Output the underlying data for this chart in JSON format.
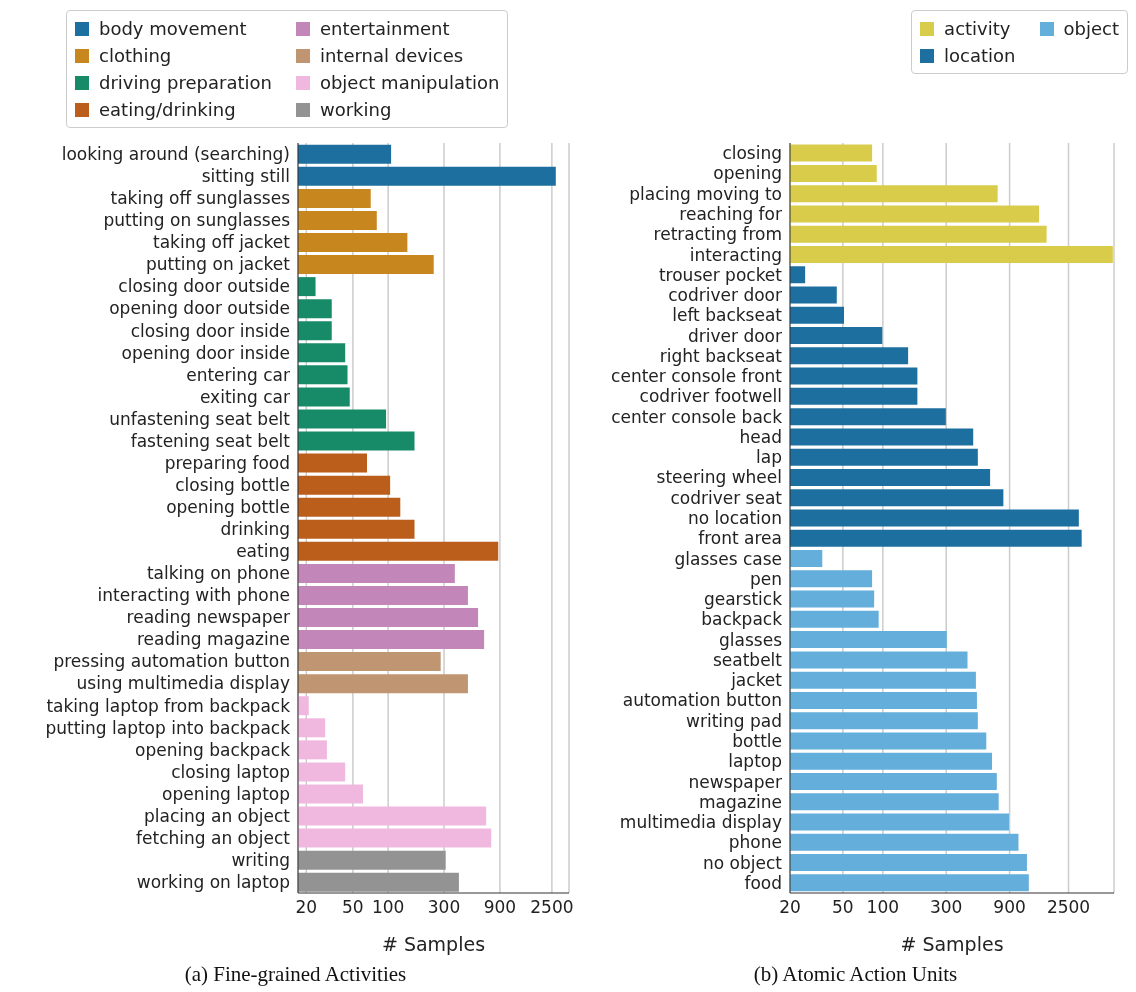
{
  "chart_data": [
    {
      "type": "bar",
      "orientation": "horizontal",
      "title": "(a) Fine-grained Activities",
      "xlabel": "# Samples",
      "log": "x",
      "grid": "x",
      "legend": "top",
      "xlim": [
        17,
        3500
      ],
      "xticks": [
        20,
        50,
        100,
        300,
        900,
        2500
      ],
      "categories": [
        "looking around (searching)",
        "sitting still",
        "taking off sunglasses",
        "putting on sunglasses",
        "taking off jacket",
        "putting on jacket",
        "closing door outside",
        "opening door outside",
        "closing door inside",
        "opening door inside",
        "entering car",
        "exiting car",
        "unfastening seat belt",
        "fastening seat belt",
        "preparing food",
        "closing bottle",
        "opening bottle",
        "drinking",
        "eating",
        "talking on phone",
        "interacting with phone",
        "reading newspaper",
        "reading magazine",
        "pressing automation button",
        "using multimedia display",
        "taking laptop from backpack",
        "putting laptop into backpack",
        "opening backpack",
        "closing laptop",
        "opening laptop",
        "placing an object",
        "fetching an object",
        "writing",
        "working on laptop"
      ],
      "series": [
        {
          "name": "body movement",
          "color": "#1c6f9f",
          "values": [
            106,
            2700,
            null,
            null,
            null,
            null,
            null,
            null,
            null,
            null,
            null,
            null,
            null,
            null,
            null,
            null,
            null,
            null,
            null,
            null,
            null,
            null,
            null,
            null,
            null,
            null,
            null,
            null,
            null,
            null,
            null,
            null,
            null,
            null
          ]
        },
        {
          "name": "clothing",
          "color": "#c8871e",
          "values": [
            null,
            null,
            71,
            80,
            146,
            245,
            null,
            null,
            null,
            null,
            null,
            null,
            null,
            null,
            null,
            null,
            null,
            null,
            null,
            null,
            null,
            null,
            null,
            null,
            null,
            null,
            null,
            null,
            null,
            null,
            null,
            null,
            null,
            null
          ]
        },
        {
          "name": "driving preparation",
          "color": "#178b68",
          "values": [
            null,
            null,
            null,
            null,
            null,
            null,
            24,
            33,
            33,
            43,
            45,
            47,
            96,
            168,
            null,
            null,
            null,
            null,
            null,
            null,
            null,
            null,
            null,
            null,
            null,
            null,
            null,
            null,
            null,
            null,
            null,
            null,
            null,
            null
          ]
        },
        {
          "name": "eating/drinking",
          "color": "#bb5e1c",
          "values": [
            null,
            null,
            null,
            null,
            null,
            null,
            null,
            null,
            null,
            null,
            null,
            null,
            null,
            null,
            66,
            104,
            127,
            168,
            871,
            null,
            null,
            null,
            null,
            null,
            null,
            null,
            null,
            null,
            null,
            null,
            null,
            null,
            null,
            null
          ]
        },
        {
          "name": "entertainment",
          "color": "#c386b8",
          "values": [
            null,
            null,
            null,
            null,
            null,
            null,
            null,
            null,
            null,
            null,
            null,
            null,
            null,
            null,
            null,
            null,
            null,
            null,
            null,
            371,
            480,
            586,
            660,
            null,
            null,
            null,
            null,
            null,
            null,
            null,
            null,
            null,
            null,
            null
          ]
        },
        {
          "name": "internal devices",
          "color": "#c09672",
          "values": [
            null,
            null,
            null,
            null,
            null,
            null,
            null,
            null,
            null,
            null,
            null,
            null,
            null,
            null,
            null,
            null,
            null,
            null,
            null,
            null,
            null,
            null,
            null,
            281,
            480,
            null,
            null,
            null,
            null,
            null,
            null,
            null,
            null,
            null
          ]
        },
        {
          "name": "object manipulation",
          "color": "#f0b8df",
          "values": [
            null,
            null,
            null,
            null,
            null,
            null,
            null,
            null,
            null,
            null,
            null,
            null,
            null,
            null,
            null,
            null,
            null,
            null,
            null,
            null,
            null,
            null,
            null,
            null,
            null,
            21,
            29,
            30,
            43,
            61,
            687,
            759,
            null,
            null
          ]
        },
        {
          "name": "working",
          "color": "#939393",
          "values": [
            null,
            null,
            null,
            null,
            null,
            null,
            null,
            null,
            null,
            null,
            null,
            null,
            null,
            null,
            null,
            null,
            null,
            null,
            null,
            null,
            null,
            null,
            null,
            null,
            null,
            null,
            null,
            null,
            null,
            null,
            null,
            null,
            310,
            402
          ]
        }
      ]
    },
    {
      "type": "bar",
      "orientation": "horizontal",
      "title": "(b) Atomic Action Units",
      "xlabel": "# Samples",
      "log": "x",
      "grid": "x",
      "legend": "top right",
      "xlim": [
        20,
        5500
      ],
      "xticks": [
        20,
        50,
        100,
        300,
        900,
        2500
      ],
      "categories": [
        "closing",
        "opening",
        "placing moving to",
        "reaching for",
        "retracting from",
        "interacting",
        "trouser pocket",
        "codriver door",
        "left backseat",
        "driver door",
        "right backseat",
        "center console front",
        "codriver footwell",
        "center console back",
        "head",
        "lap",
        "steering wheel",
        "codriver seat",
        "no location",
        "front area",
        "glasses case",
        "pen",
        "gearstick",
        "backpack",
        "glasses",
        "seatbelt",
        "jacket",
        "automation button",
        "writing pad",
        "bottle",
        "laptop",
        "newspaper",
        "magazine",
        "multimedia display",
        "phone",
        "no object",
        "food"
      ],
      "series": [
        {
          "name": "activity",
          "color": "#d9cc4a",
          "values": [
            83,
            90,
            732,
            1500,
            1710,
            5390,
            null,
            null,
            null,
            null,
            null,
            null,
            null,
            null,
            null,
            null,
            null,
            null,
            null,
            null,
            null,
            null,
            null,
            null,
            null,
            null,
            null,
            null,
            null,
            null,
            null,
            null,
            null,
            null,
            null,
            null,
            null
          ]
        },
        {
          "name": "location",
          "color": "#1c6f9f",
          "values": [
            null,
            null,
            null,
            null,
            null,
            null,
            26,
            45,
            51,
            99,
            155,
            182,
            182,
            298,
            479,
            519,
            642,
            808,
            2990,
            3140,
            null,
            null,
            null,
            null,
            null,
            null,
            null,
            null,
            null,
            null,
            null,
            null,
            null,
            null,
            null,
            null,
            null
          ]
        },
        {
          "name": "object",
          "color": "#63aedb",
          "values": [
            null,
            null,
            null,
            null,
            null,
            null,
            null,
            null,
            null,
            null,
            null,
            null,
            null,
            null,
            null,
            null,
            null,
            null,
            null,
            null,
            35,
            83,
            86,
            93,
            303,
            434,
            502,
            511,
            519,
            601,
            664,
            721,
            745,
            891,
            1050,
            1216,
            1256
          ]
        }
      ]
    }
  ]
}
